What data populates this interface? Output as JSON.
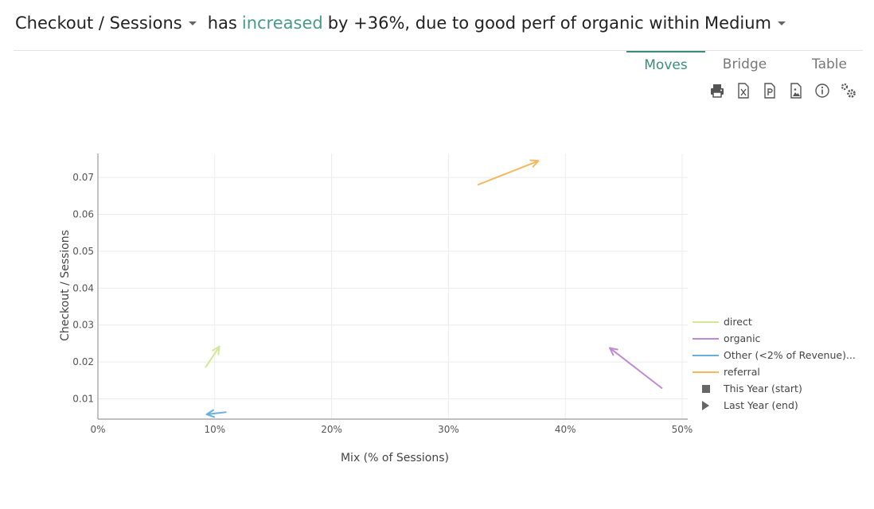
{
  "header": {
    "metric": "Checkout / Sessions",
    "phrase_pre": "has",
    "phrase_accent": "increased",
    "phrase_post": "by +36%, due to good perf of organic within",
    "dimension": "Medium",
    "accent_color": "#4a9a8a"
  },
  "tabs": [
    {
      "label": "Moves",
      "active": true
    },
    {
      "label": "Bridge",
      "active": false
    },
    {
      "label": "Table",
      "active": false
    }
  ],
  "toolbar": {
    "icons": [
      "print-icon",
      "excel-export-icon",
      "pdf-export-icon",
      "image-export-icon",
      "info-icon",
      "settings-icon"
    ]
  },
  "chart_data": {
    "type": "scatter",
    "xlabel": "Mix (% of Sessions)",
    "ylabel": "Checkout / Sessions",
    "xlim": [
      0,
      0.5
    ],
    "ylim": [
      0.0045,
      0.0765
    ],
    "x_ticks": [
      0,
      0.1,
      0.2,
      0.3,
      0.4,
      0.5
    ],
    "x_tick_labels": [
      "0%",
      "10%",
      "20%",
      "30%",
      "40%",
      "50%"
    ],
    "y_ticks": [
      0.01,
      0.02,
      0.03,
      0.04,
      0.05,
      0.06,
      0.07
    ],
    "y_tick_labels": [
      "0.01",
      "0.02",
      "0.03",
      "0.04",
      "0.05",
      "0.06",
      "0.07"
    ],
    "grid": true,
    "legend_position": "right",
    "series": [
      {
        "name": "direct",
        "color": "#d4e69a",
        "start": [
          0.092,
          0.0185
        ],
        "end": [
          0.104,
          0.0242
        ]
      },
      {
        "name": "organic",
        "color": "#c08ad0",
        "start": [
          0.483,
          0.0128
        ],
        "end": [
          0.438,
          0.0238
        ]
      },
      {
        "name": "Other (<2% of Revenue)...",
        "color": "#6aaee0",
        "start": [
          0.11,
          0.0064
        ],
        "end": [
          0.093,
          0.0058
        ]
      },
      {
        "name": "referral",
        "color": "#f4b860",
        "start": [
          0.325,
          0.068
        ],
        "end": [
          0.377,
          0.0745
        ]
      }
    ],
    "marker_legend": [
      {
        "label": "This Year (start)",
        "shape": "square"
      },
      {
        "label": "Last Year (end)",
        "shape": "triangle"
      }
    ]
  }
}
